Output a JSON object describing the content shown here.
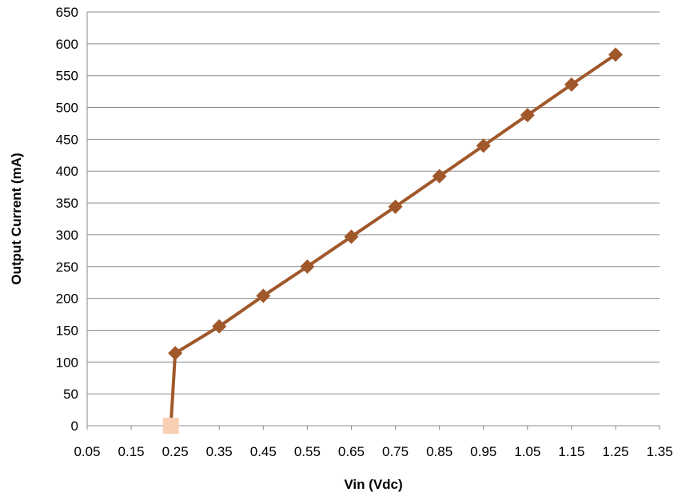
{
  "chart_data": {
    "type": "line",
    "title": "",
    "xlabel": "Vin (Vdc)",
    "ylabel": "Output Current (mA)",
    "xlim": [
      0.05,
      1.35
    ],
    "ylim": [
      0,
      650
    ],
    "x_ticks": [
      "0.05",
      "0.15",
      "0.25",
      "0.35",
      "0.45",
      "0.55",
      "0.65",
      "0.75",
      "0.85",
      "0.95",
      "1.05",
      "1.15",
      "1.25",
      "1.35"
    ],
    "y_ticks": [
      "0",
      "50",
      "100",
      "150",
      "200",
      "250",
      "300",
      "350",
      "400",
      "450",
      "500",
      "550",
      "600",
      "650"
    ],
    "grid": "horizontal",
    "legend": "none",
    "series": [
      {
        "x": [
          0.24,
          0.25,
          0.35,
          0.45,
          0.55,
          0.65,
          0.75,
          0.85,
          0.95,
          1.05,
          1.15,
          1.25
        ],
        "values": [
          0,
          114,
          156,
          204,
          250,
          297,
          344,
          392,
          440,
          488,
          536,
          583
        ],
        "color": "#a0582a",
        "marker": "diamond"
      }
    ],
    "highlight_point": {
      "x": 0.24,
      "y": 0,
      "color": "#f9cfb4",
      "marker": "square"
    }
  }
}
